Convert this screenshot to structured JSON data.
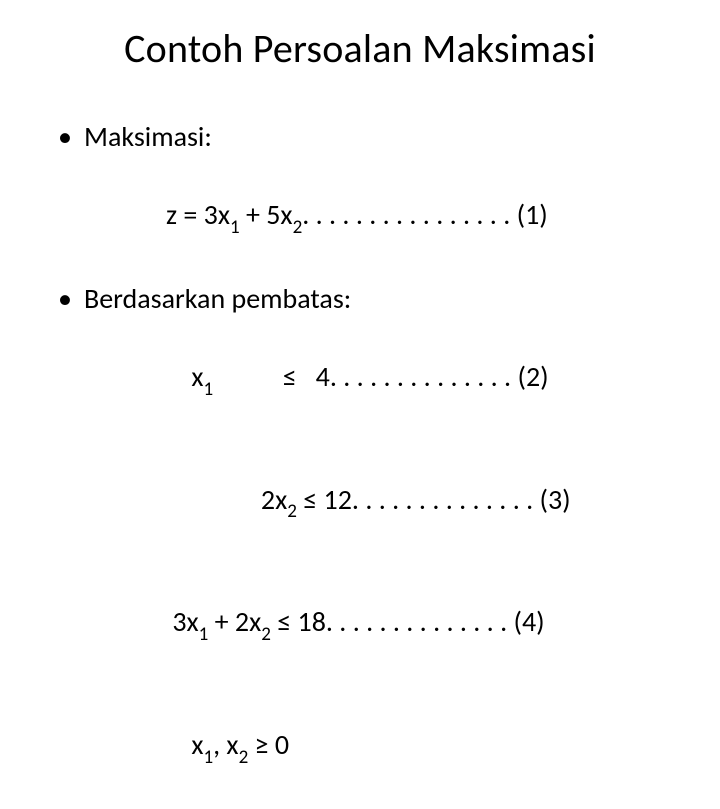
{
  "title": "Contoh Persoalan Maksimasi",
  "bullets": [
    {
      "label": "Maksimasi:"
    },
    {
      "label": "Berdasarkan pembatas:"
    }
  ],
  "eq1": {
    "lhs": "z = 3x",
    "sub1": "1",
    "mid": " + 5x",
    "sub2": "2",
    "dots": ". . . . . . . . . . . . . . . .",
    "tag": " (1)"
  },
  "eq2": {
    "pad": "    ",
    "var": "x",
    "sub1": "1",
    "rel": "           ≤   4",
    "dots": ". . . . . . . . . . . . . .",
    "tag": " (2)"
  },
  "eq3": {
    "pad": "               2x",
    "sub1": "2",
    "rel": " ≤ 12",
    "dots": ". . . . . . . . . . . . . .",
    "tag": " (3)"
  },
  "eq4": {
    "lhs": " 3x",
    "sub1": "1",
    "mid": " + 2x",
    "sub2": "2",
    "rel": " ≤ 18",
    "dots": ". . . . . . . . . . . . . .",
    "tag": " (4)"
  },
  "eq5": {
    "pad": "    ",
    "v1": "x",
    "sub1": "1",
    "sep": ", x",
    "sub2": "2",
    "rel": " ≥ 0"
  }
}
